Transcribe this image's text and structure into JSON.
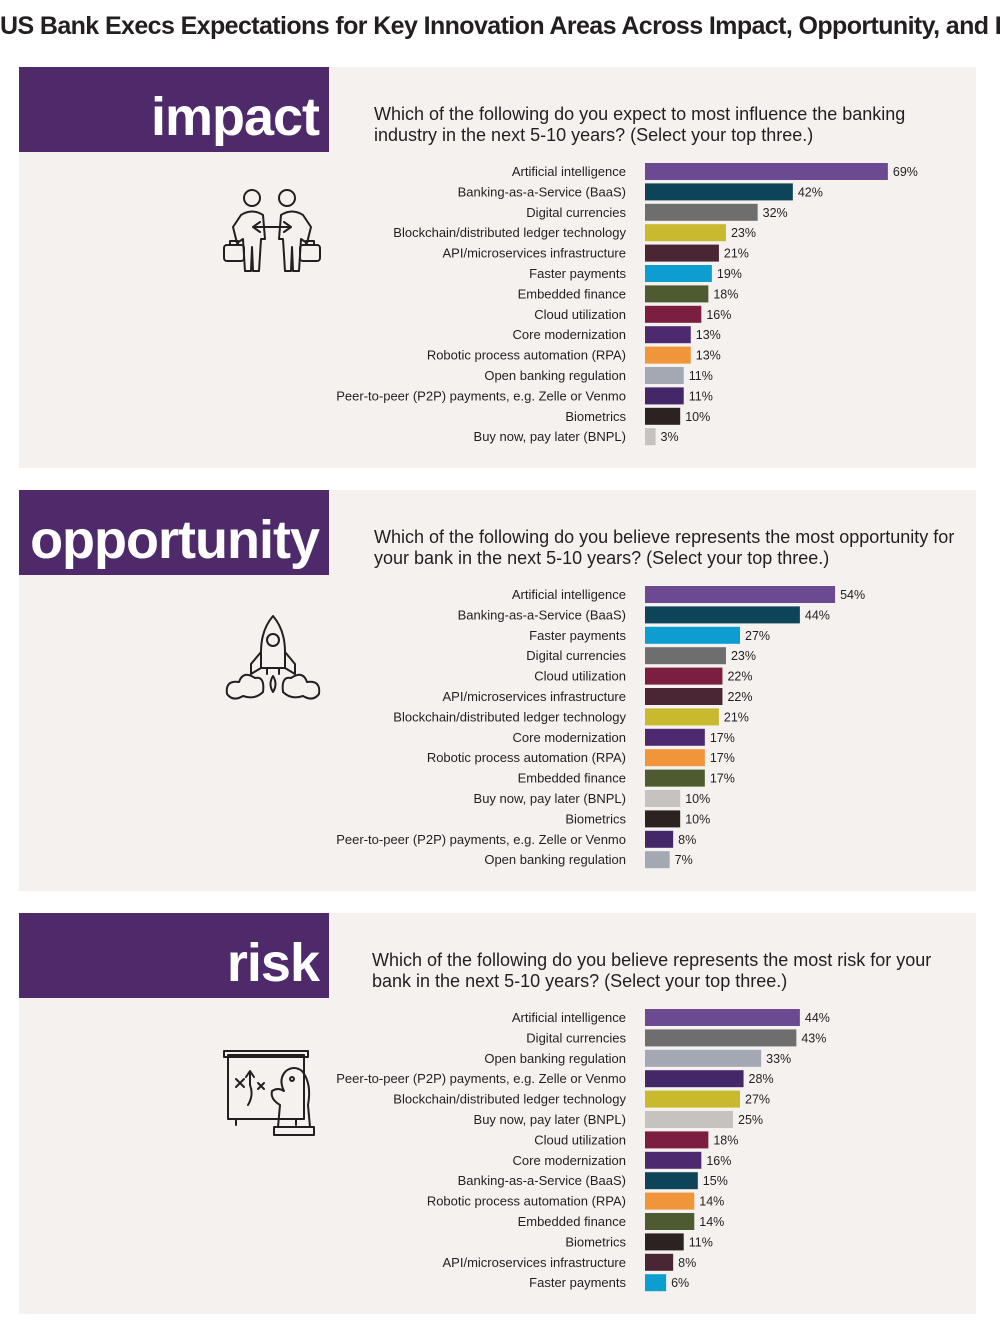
{
  "title": "US Bank Execs Expectations for Key Innovation Areas Across Impact, Opportunity, and Risk",
  "colors": {
    "panel_bg": "#f4f1ee",
    "tag_bg": "#4e2a6b",
    "Artificial intelligence": "#6b4a91",
    "Banking-as-a-Service (BaaS)": "#0d4459",
    "Digital currencies": "#6e6e6e",
    "Blockchain/distributed ledger technology": "#c9b92e",
    "API/microservices infrastructure": "#4a2533",
    "Faster payments": "#0d9ed0",
    "Embedded finance": "#4e5b31",
    "Cloud utilization": "#7b1e3f",
    "Core modernization": "#4d2a70",
    "Robotic process automation (RPA)": "#f0953a",
    "Open banking regulation": "#a3a8b3",
    "Peer-to-peer (P2P) payments, e.g. Zelle or Venmo": "#432769",
    "Biometrics": "#2b2322",
    "Buy now, pay later (BNPL)": "#c5c2bf"
  },
  "chart_data": [
    {
      "id": "impact",
      "type": "bar",
      "orientation": "horizontal",
      "section_label": "impact",
      "icon": "business-people-exchange-icon",
      "title": "Which of the following do you expect to most influence the banking industry in the next 5-10 years? (Select your top three.)",
      "unit": "%",
      "xlim": [
        0,
        100
      ],
      "categories": [
        "Artificial intelligence",
        "Banking-as-a-Service (BaaS)",
        "Digital currencies",
        "Blockchain/distributed ledger technology",
        "API/microservices infrastructure",
        "Faster payments",
        "Embedded finance",
        "Cloud utilization",
        "Core modernization",
        "Robotic process automation (RPA)",
        "Open banking regulation",
        "Peer-to-peer (P2P) payments, e.g. Zelle or Venmo",
        "Biometrics",
        "Buy now, pay later (BNPL)"
      ],
      "values": [
        69,
        42,
        32,
        23,
        21,
        19,
        18,
        16,
        13,
        13,
        11,
        11,
        10,
        3
      ],
      "value_labels": [
        "69%",
        "42%",
        "32%",
        "23%",
        "21%",
        "19%",
        "18%",
        "16%",
        "13%",
        "13%",
        "11%",
        "11%",
        "10%",
        "3%"
      ]
    },
    {
      "id": "opportunity",
      "type": "bar",
      "orientation": "horizontal",
      "section_label": "opportunity",
      "icon": "rocket-launch-icon",
      "title": "Which of the following do you believe represents the most opportunity for your bank in the next 5-10 years? (Select your top three.)",
      "unit": "%",
      "xlim": [
        0,
        100
      ],
      "categories": [
        "Artificial intelligence",
        "Banking-as-a-Service (BaaS)",
        "Faster payments",
        "Digital currencies",
        "Cloud utilization",
        "API/microservices infrastructure",
        "Blockchain/distributed ledger technology",
        "Core modernization",
        "Robotic process automation (RPA)",
        "Embedded finance",
        "Buy now, pay later (BNPL)",
        "Biometrics",
        "Peer-to-peer (P2P) payments, e.g. Zelle or Venmo",
        "Open banking regulation"
      ],
      "values": [
        54,
        44,
        27,
        23,
        22,
        22,
        21,
        17,
        17,
        17,
        10,
        10,
        8,
        7
      ],
      "value_labels": [
        "54%",
        "44%",
        "27%",
        "23%",
        "22%",
        "22%",
        "21%",
        "17%",
        "17%",
        "17%",
        "10%",
        "10%",
        "8%",
        "7%"
      ]
    },
    {
      "id": "risk",
      "type": "bar",
      "orientation": "horizontal",
      "section_label": "risk",
      "icon": "chess-strategy-board-icon",
      "title": "Which of the following do you believe represents the most risk for your bank in the next 5-10 years? (Select your top three.)",
      "unit": "%",
      "xlim": [
        0,
        100
      ],
      "categories": [
        "Artificial intelligence",
        "Digital currencies",
        "Open banking regulation",
        "Peer-to-peer (P2P) payments, e.g. Zelle or Venmo",
        "Blockchain/distributed ledger technology",
        "Buy now, pay later (BNPL)",
        "Cloud utilization",
        "Core modernization",
        "Banking-as-a-Service (BaaS)",
        "Robotic process automation (RPA)",
        "Embedded finance",
        "Biometrics",
        "API/microservices infrastructure",
        "Faster payments"
      ],
      "values": [
        44,
        43,
        33,
        28,
        27,
        25,
        18,
        16,
        15,
        14,
        14,
        11,
        8,
        6
      ],
      "value_labels": [
        "44%",
        "43%",
        "33%",
        "28%",
        "27%",
        "25%",
        "18%",
        "16%",
        "15%",
        "14%",
        "14%",
        "11%",
        "8%",
        "6%"
      ]
    }
  ]
}
